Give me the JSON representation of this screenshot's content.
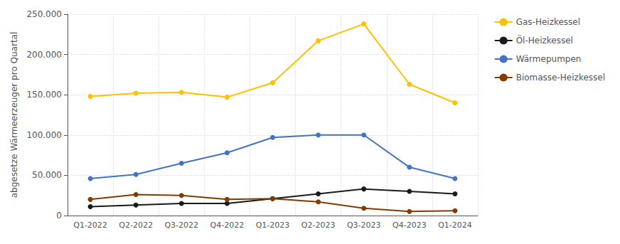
{
  "chart_data": {
    "type": "line",
    "categories": [
      "Q1-2022",
      "Q2-2022",
      "Q3-2022",
      "Q4-2022",
      "Q1-2023",
      "Q2-2023",
      "Q3-2023",
      "Q4-2023",
      "Q1-2024"
    ],
    "series": [
      {
        "name": "Gas-Heizkessel",
        "color": "#FFC000",
        "values": [
          148000,
          152000,
          153000,
          147000,
          165000,
          217000,
          238000,
          163000,
          140000
        ]
      },
      {
        "name": "Öl-Heizkessel",
        "color": "#1a1a1a",
        "values": [
          11000,
          13000,
          15000,
          15000,
          21000,
          27000,
          33000,
          30000,
          27000
        ]
      },
      {
        "name": "Wärmepumpen",
        "color": "#4472C4",
        "values": [
          46000,
          51000,
          65000,
          78000,
          97000,
          100000,
          100000,
          60000,
          46000
        ]
      },
      {
        "name": "Biomasse-Heizkessel",
        "color": "#833C00",
        "values": [
          20000,
          26000,
          25000,
          20000,
          21000,
          17000,
          9000,
          5000,
          6000
        ]
      }
    ],
    "ylabel": "abgesetze Wärmeerzeuger pro Quartal",
    "ylim": [
      0,
      250000
    ],
    "yticks": [
      0,
      {
        "value": 50000,
        "label": "50.000"
      },
      {
        "value": 100000,
        "label": "100.000"
      },
      {
        "value": 150000,
        "label": "150.000"
      },
      {
        "value": 200000,
        "label": "200.000"
      },
      {
        "value": 250000,
        "label": "250.000"
      }
    ],
    "grid": true,
    "legend": "right",
    "marker": "circle"
  }
}
